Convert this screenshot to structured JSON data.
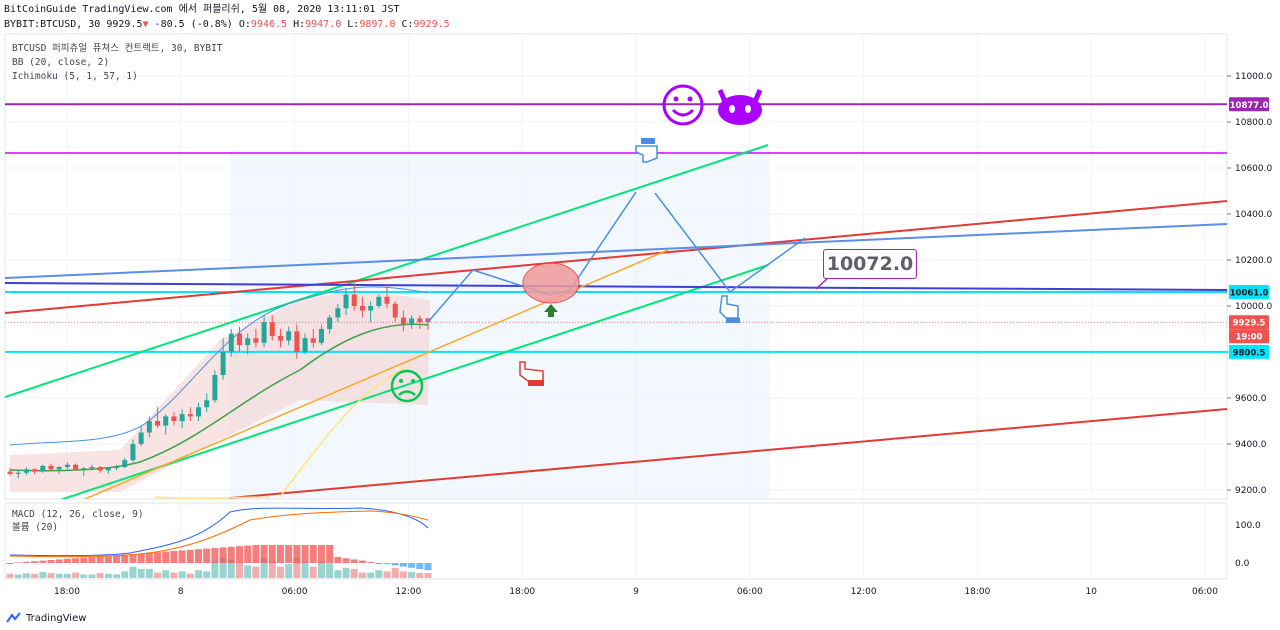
{
  "header": {
    "line1": "BitCoinGuide TradingView.com 에서 퍼블리쉬, 5월 08, 2020 13:11:01 JST",
    "symbol": "BYBIT:BTCUSD, 30",
    "last": "9929.5",
    "change": "-80.5 (-0.8%)",
    "o_label": "O:",
    "o": "9946.5",
    "h_label": "H:",
    "h": "9947.0",
    "l_label": "L:",
    "l": "9897.0",
    "c_label": "C:",
    "c": "9929.5"
  },
  "legend": {
    "symbol_line": "BTCUSD 퍼피츄얼 퓨쳐스 컨트랙트, 30, BYBIT",
    "bb": "BB (20, close, 2)",
    "ichimoku": "Ichimoku (5, 1, 57, 1)",
    "macd": "MACD (12, 26, close, 9)",
    "volume": "볼륨 (20)"
  },
  "annotation": {
    "callout_value": "10072.0"
  },
  "footer": {
    "brand": "TradingView"
  },
  "colors": {
    "up": "#26a69a",
    "down": "#ef5350",
    "purple": "#9c27b0",
    "magenta": "#e040fb",
    "green": "#00e676",
    "red": "#e53935",
    "blue": "#5b8ee6",
    "cyan": "#00e5ff",
    "orange": "#ffa726",
    "yellow": "#ffe57f"
  },
  "chart_data": {
    "type": "candlestick",
    "symbol": "BYBIT:BTCUSD",
    "interval": "30",
    "price_axis": {
      "ticks": [
        9200,
        9400,
        9600,
        9800,
        10000,
        10200,
        10400,
        10600,
        10800,
        11000
      ],
      "range": [
        9155,
        11150
      ]
    },
    "time_axis": {
      "ticks": [
        "18:00",
        "8",
        "06:00",
        "12:00",
        "18:00",
        "9",
        "06:00",
        "12:00",
        "18:00",
        "10",
        "06:00"
      ]
    },
    "price_labels": [
      {
        "value": "10877.0",
        "color": "#9c27b0"
      },
      {
        "value": "10061.0",
        "color": "#00e5ff"
      },
      {
        "value": "9929.5",
        "color": "#ef5350"
      },
      {
        "value": "19:00",
        "color": "#ef5350"
      },
      {
        "value": "9800.5",
        "color": "#00e5ff"
      }
    ],
    "horizontal_levels": [
      {
        "price": 10877,
        "color": "#9c27b0"
      },
      {
        "price": 10665,
        "color": "#e040fb"
      },
      {
        "price": 10061,
        "color": "#00e5ff"
      },
      {
        "price": 9800.5,
        "color": "#00e5ff"
      }
    ],
    "candles": [
      [
        9280,
        9295,
        9260,
        9270
      ],
      [
        9270,
        9285,
        9250,
        9275
      ],
      [
        9275,
        9300,
        9265,
        9290
      ],
      [
        9290,
        9295,
        9270,
        9280
      ],
      [
        9280,
        9310,
        9275,
        9305
      ],
      [
        9305,
        9315,
        9285,
        9290
      ],
      [
        9290,
        9305,
        9270,
        9300
      ],
      [
        9300,
        9320,
        9290,
        9310
      ],
      [
        9310,
        9315,
        9285,
        9290
      ],
      [
        9290,
        9300,
        9260,
        9295
      ],
      [
        9295,
        9310,
        9285,
        9300
      ],
      [
        9300,
        9305,
        9275,
        9285
      ],
      [
        9285,
        9300,
        9270,
        9295
      ],
      [
        9295,
        9310,
        9285,
        9300
      ],
      [
        9300,
        9340,
        9295,
        9330
      ],
      [
        9330,
        9420,
        9320,
        9400
      ],
      [
        9400,
        9480,
        9390,
        9450
      ],
      [
        9450,
        9520,
        9430,
        9500
      ],
      [
        9500,
        9560,
        9470,
        9480
      ],
      [
        9480,
        9530,
        9440,
        9520
      ],
      [
        9520,
        9540,
        9480,
        9500
      ],
      [
        9500,
        9550,
        9470,
        9530
      ],
      [
        9530,
        9560,
        9500,
        9520
      ],
      [
        9520,
        9580,
        9500,
        9560
      ],
      [
        9560,
        9620,
        9540,
        9590
      ],
      [
        9590,
        9720,
        9580,
        9700
      ],
      [
        9700,
        9860,
        9680,
        9800
      ],
      [
        9800,
        9900,
        9780,
        9880
      ],
      [
        9880,
        9910,
        9800,
        9830
      ],
      [
        9830,
        9880,
        9790,
        9860
      ],
      [
        9860,
        9900,
        9820,
        9840
      ],
      [
        9840,
        9960,
        9820,
        9930
      ],
      [
        9930,
        9960,
        9850,
        9870
      ],
      [
        9870,
        9900,
        9820,
        9850
      ],
      [
        9850,
        9910,
        9830,
        9890
      ],
      [
        9890,
        9920,
        9770,
        9800
      ],
      [
        9800,
        9880,
        9790,
        9860
      ],
      [
        9860,
        9900,
        9820,
        9840
      ],
      [
        9840,
        9920,
        9830,
        9900
      ],
      [
        9900,
        9960,
        9880,
        9950
      ],
      [
        9950,
        10010,
        9930,
        9990
      ],
      [
        9990,
        10080,
        9960,
        10050
      ],
      [
        10050,
        10100,
        9980,
        10000
      ],
      [
        10000,
        10040,
        9950,
        9980
      ],
      [
        9980,
        10020,
        9930,
        10000
      ],
      [
        10000,
        10050,
        9990,
        10040
      ],
      [
        10040,
        10090,
        9990,
        10010
      ],
      [
        10010,
        10020,
        9930,
        9950
      ],
      [
        9950,
        9980,
        9890,
        9920
      ],
      [
        9920,
        9960,
        9900,
        9946
      ],
      [
        9946,
        9960,
        9900,
        9930
      ],
      [
        9946,
        9947,
        9897,
        9929.5
      ]
    ],
    "macd": {
      "ticks": [
        "100.0",
        "0.0"
      ]
    }
  }
}
